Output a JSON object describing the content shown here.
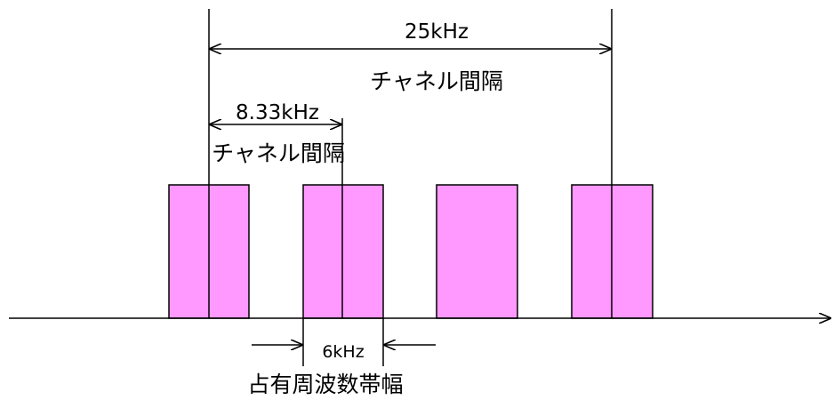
{
  "labels": {
    "wide_spacing_value": "25kHz",
    "wide_spacing_caption": "チャネル間隔",
    "narrow_spacing_value": "8.33kHz",
    "narrow_spacing_caption": "チャネル間隔",
    "bandwidth_value": "6kHz",
    "bandwidth_caption": "占有周波数帯幅"
  },
  "colors": {
    "channel_fill": "#ff99ff",
    "line": "#000000"
  },
  "channels": [
    "channel-1",
    "channel-2",
    "channel-3",
    "channel-4"
  ]
}
